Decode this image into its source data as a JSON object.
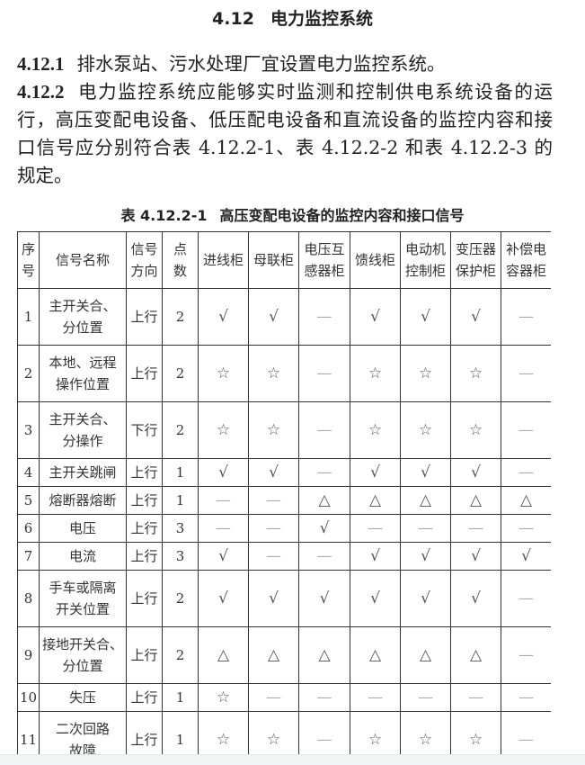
{
  "section": {
    "number": "4.12",
    "title": "电力监控系统"
  },
  "clauses": [
    {
      "number": "4.12.1",
      "lines": [
        "排水泵站、污水处理厂宜设置电力监控系统。"
      ]
    },
    {
      "number": "4.12.2",
      "lines": [
        "电力监控系统应能够实时监测和控制供电系统设备的运",
        "行，高压变配电设备、低压配电设备和直流设备的监控内容和接",
        "口信号应分别符合表 4.12.2-1、表 4.12.2-2 和表 4.12.2-3 的",
        "规定。"
      ]
    }
  ],
  "table": {
    "caption_number": "表 4.12.2-1",
    "caption_title": "高压变配电设备的监控内容和接口信号",
    "headers": [
      "序号",
      "信号名称",
      "信号方向",
      "点数",
      "进线柜",
      "母联柜",
      "电压互感器柜",
      "馈线柜",
      "电动机控制柜",
      "变压器保护柜",
      "补偿电容器柜"
    ],
    "symbols": {
      "check": "√",
      "star": "☆",
      "triangle": "△",
      "dash": "—"
    },
    "rows": [
      {
        "no": "1",
        "name": "主开关合、分位置",
        "dir": "上行",
        "pts": "2",
        "cells": [
          "√",
          "√",
          "—",
          "√",
          "√",
          "√",
          "—"
        ]
      },
      {
        "no": "2",
        "name": "本地、远程操作位置",
        "dir": "上行",
        "pts": "2",
        "cells": [
          "☆",
          "☆",
          "—",
          "☆",
          "☆",
          "☆",
          "—"
        ]
      },
      {
        "no": "3",
        "name": "主开关合、分操作",
        "dir": "下行",
        "pts": "2",
        "cells": [
          "☆",
          "☆",
          "—",
          "☆",
          "☆",
          "☆",
          "—"
        ]
      },
      {
        "no": "4",
        "name": "主开关跳闸",
        "dir": "上行",
        "pts": "1",
        "cells": [
          "√",
          "√",
          "—",
          "√",
          "√",
          "√",
          "—"
        ]
      },
      {
        "no": "5",
        "name": "熔断器熔断",
        "dir": "上行",
        "pts": "1",
        "cells": [
          "—",
          "—",
          "△",
          "△",
          "△",
          "△",
          "△"
        ]
      },
      {
        "no": "6",
        "name": "电压",
        "dir": "上行",
        "pts": "3",
        "cells": [
          "—",
          "—",
          "√",
          "—",
          "—",
          "—",
          "—"
        ]
      },
      {
        "no": "7",
        "name": "电流",
        "dir": "上行",
        "pts": "3",
        "cells": [
          "√",
          "—",
          "—",
          "√",
          "√",
          "√",
          "√"
        ]
      },
      {
        "no": "8",
        "name": "手车或隔离开关位置",
        "dir": "上行",
        "pts": "2",
        "cells": [
          "√",
          "√",
          "√",
          "√",
          "√",
          "√",
          "—"
        ]
      },
      {
        "no": "9",
        "name": "接地开关合、分位置",
        "dir": "上行",
        "pts": "2",
        "cells": [
          "△",
          "△",
          "△",
          "△",
          "△",
          "△",
          "—"
        ]
      },
      {
        "no": "10",
        "name": "失压",
        "dir": "上行",
        "pts": "1",
        "cells": [
          "☆",
          "—",
          "—",
          "—",
          "—",
          "—",
          "—"
        ]
      },
      {
        "no": "11",
        "name": "二次回路故障",
        "dir": "上行",
        "pts": "1",
        "cells": [
          "☆",
          "☆",
          "—",
          "☆",
          "☆",
          "☆",
          "—"
        ]
      }
    ]
  }
}
